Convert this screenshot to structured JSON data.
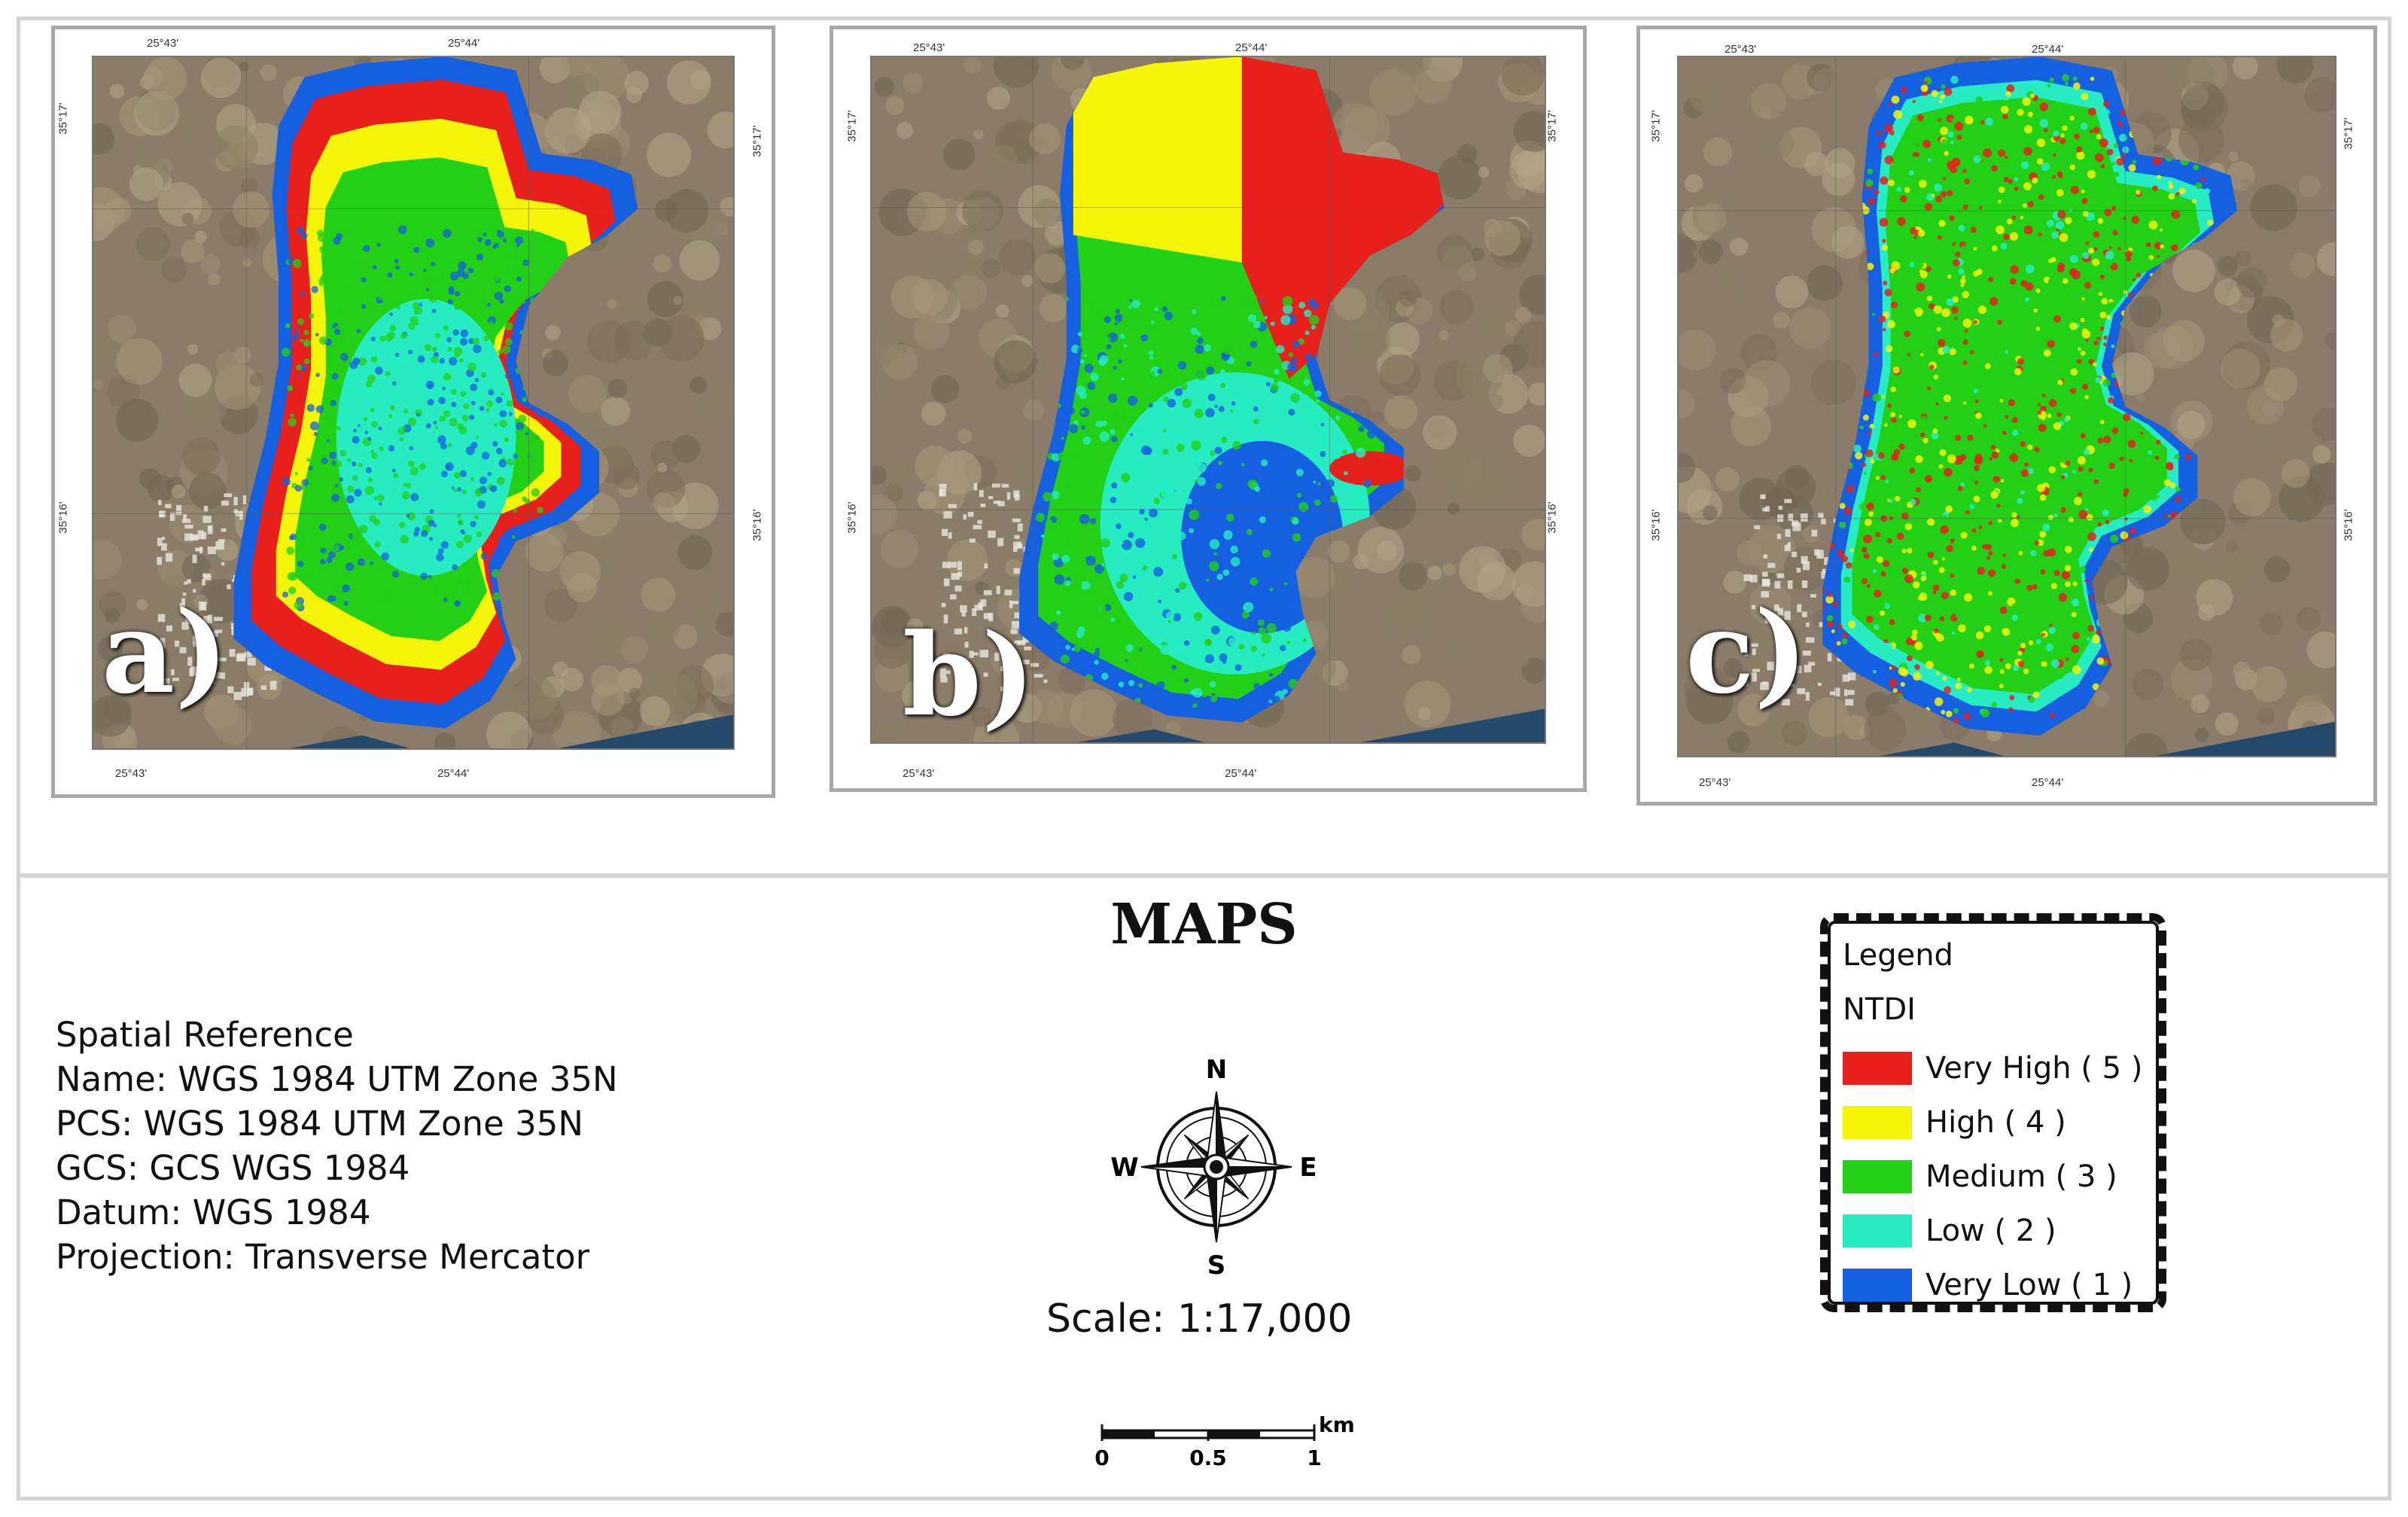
{
  "colors": {
    "very_high": "#e8201c",
    "high": "#f5f50a",
    "medium": "#22d016",
    "low": "#27ecc2",
    "very_low": "#1560e0",
    "land": "#8a7c68",
    "frame": "#a8a8a8"
  },
  "panels": [
    {
      "label": "a)",
      "lon_left": "25°43'",
      "lon_right": "25°44'",
      "lat_top": "35°17'",
      "lat_bottom": "35°16'"
    },
    {
      "label": "b)",
      "lon_left": "25°43'",
      "lon_right": "25°44'",
      "lat_top": "35°17'",
      "lat_bottom": "35°16'"
    },
    {
      "label": "c)",
      "lon_left": "25°43'",
      "lon_right": "25°44'",
      "lat_top": "35°17'",
      "lat_bottom": "35°16'"
    }
  ],
  "title": "MAPS",
  "spatial_reference": {
    "heading": "Spatial Reference",
    "name": "Name: WGS 1984 UTM Zone 35N",
    "pcs": "PCS: WGS 1984 UTM Zone 35N",
    "gcs": "GCS: GCS WGS 1984",
    "datum": "Datum: WGS 1984",
    "projection": "Projection: Transverse Mercator"
  },
  "compass": {
    "n": "N",
    "s": "S",
    "e": "E",
    "w": "W"
  },
  "scale": {
    "text": "Scale: 1:17,000",
    "unit": "km",
    "ticks": [
      "0",
      "0.5",
      "1"
    ]
  },
  "legend": {
    "title": "Legend",
    "layer": "NTDI",
    "classes": [
      {
        "label": "Very High  ( 5 )",
        "color": "#e8201c"
      },
      {
        "label": "High ( 4 )",
        "color": "#f5f50a"
      },
      {
        "label": "Medium ( 3 )",
        "color": "#22d016"
      },
      {
        "label": "Low ( 2 )",
        "color": "#27ecc2"
      },
      {
        "label": "Very Low ( 1 )",
        "color": "#1560e0"
      }
    ]
  }
}
